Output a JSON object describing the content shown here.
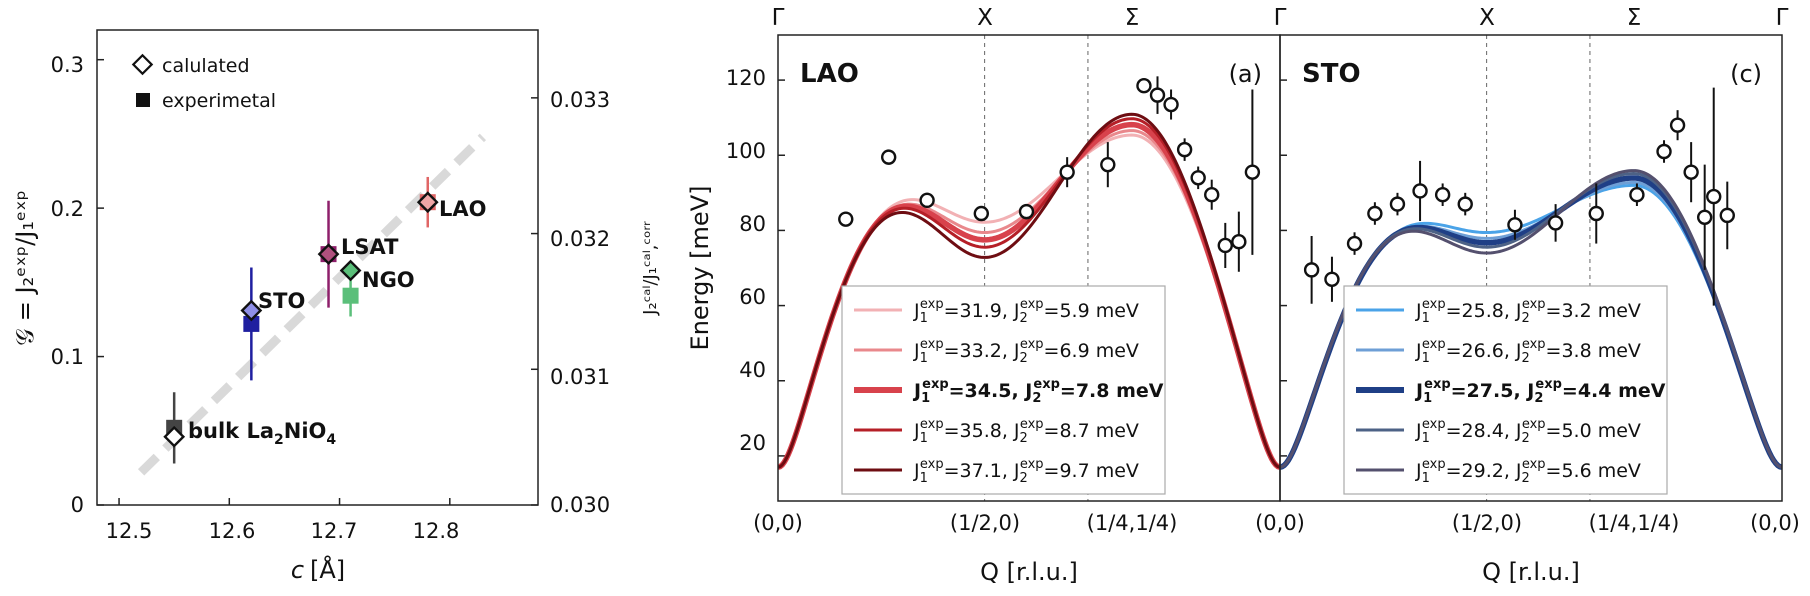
{
  "left_panel": {
    "xlabel_italic": "c",
    "xlabel_unit": "[Å]",
    "ylabel_main": "𝒢 = J₂ᵉˣᵖ/J₁ᵉˣᵖ",
    "ylabel_right": "J₂ᶜᵃˡ/J₁ᶜᵃˡ,ᶜᵒʳʳ",
    "legend": {
      "calc": "calulated",
      "exp": "experimetal"
    },
    "xticks": [
      "12.5",
      "12.6",
      "12.7",
      "12.8"
    ],
    "yticks": [
      "0",
      "0.1",
      "0.2",
      "0.3"
    ],
    "y2ticks": [
      "0.030",
      "0.031",
      "0.032",
      "0.033"
    ],
    "labels": {
      "LAO": "LAO",
      "LSAT": "LSAT",
      "NGO": "NGO",
      "STO": "STO",
      "bulk": "bulk La",
      "bulk_sub2": "2",
      "bulk_mid": "NiO",
      "bulk_sub4": "4"
    }
  },
  "dispersion": {
    "x_ticks": [
      "(0,0)",
      "(1/2,0)",
      "(1/4,1/4)",
      "(0,0)"
    ],
    "top_ticks": [
      "Γ",
      "X",
      "Σ",
      "Γ"
    ],
    "xlabel": "Q [r.l.u.]",
    "ylabel": "Energy [meV]",
    "yticks": [
      "20",
      "40",
      "60",
      "80",
      "100",
      "120"
    ],
    "a": {
      "title": "LAO",
      "tag": "(a)"
    },
    "c": {
      "title": "STO",
      "tag": "(c)"
    }
  },
  "chart_data": [
    {
      "type": "scatter",
      "title": "",
      "xlabel": "c [Å]",
      "ylabel": "𝒢 = J2exp/J1exp",
      "y2label": "J2cal/J1cal,corr",
      "xlim": [
        12.48,
        12.88
      ],
      "ylim": [
        0,
        0.32
      ],
      "y2lim": [
        0.03,
        0.0335
      ],
      "legend_position": "top-left",
      "series": [
        {
          "name": "calulated",
          "marker": "diamond-open",
          "points": [
            {
              "label": "bulk La2NiO4",
              "x": 12.55,
              "y": 0.046,
              "color": "#ffffff"
            },
            {
              "label": "STO",
              "x": 12.62,
              "y": 0.131,
              "color": "#8f8fe6"
            },
            {
              "label": "LSAT",
              "x": 12.69,
              "y": 0.169,
              "color": "#b0507e"
            },
            {
              "label": "NGO",
              "x": 12.71,
              "y": 0.158,
              "color": "#5bbf7a"
            },
            {
              "label": "LAO",
              "x": 12.78,
              "y": 0.204,
              "color": "#f0a6a6"
            }
          ]
        },
        {
          "name": "experimetal",
          "marker": "square",
          "points": [
            {
              "label": "bulk La2NiO4",
              "x": 12.55,
              "y": 0.052,
              "yerr": 0.024,
              "color": "#444444"
            },
            {
              "label": "STO",
              "x": 12.62,
              "y": 0.122,
              "yerr": 0.038,
              "color": "#1f1fa0"
            },
            {
              "label": "LSAT",
              "x": 12.69,
              "y": 0.169,
              "yerr": 0.036,
              "color": "#8e1f6b"
            },
            {
              "label": "NGO",
              "x": 12.71,
              "y": 0.141,
              "yerr": 0.014,
              "color": "#5bbf7a"
            },
            {
              "label": "LAO",
              "x": 12.78,
              "y": 0.204,
              "yerr": 0.017,
              "color": "#e06666"
            }
          ]
        }
      ],
      "trend_line": {
        "x": [
          12.52,
          12.83
        ],
        "y": [
          0.022,
          0.248
        ],
        "color": "#d9d9d9"
      }
    },
    {
      "type": "line",
      "panel": "(a)",
      "title": "LAO",
      "xlabel": "Q [r.l.u.]",
      "ylabel": "Energy [meV]",
      "ylim": [
        8,
        132
      ],
      "x_tick_labels": [
        "(0,0)",
        "(1/2,0)",
        "(1/4,1/4)",
        "(0,0)"
      ],
      "legend_position": "bottom-right",
      "series": [
        {
          "name": "J1exp=31.9, J2exp=5.9 meV",
          "J1": 31.9,
          "J2": 5.9,
          "color": "#f2b1b4",
          "bold": false
        },
        {
          "name": "J1exp=33.2, J2exp=6.9 meV",
          "J1": 33.2,
          "J2": 6.9,
          "color": "#e9888c",
          "bold": false
        },
        {
          "name": "J1exp=34.5, J2exp=7.8 meV",
          "J1": 34.5,
          "J2": 7.8,
          "color": "#d8424c",
          "bold": true
        },
        {
          "name": "J1exp=35.8, J2exp=8.7 meV",
          "J1": 35.8,
          "J2": 8.7,
          "color": "#b51f27",
          "bold": false
        },
        {
          "name": "J1exp=37.1, J2exp=9.7 meV",
          "J1": 37.1,
          "J2": 9.7,
          "color": "#6e0d12",
          "bold": false
        }
      ],
      "points": [
        {
          "x": 0.15,
          "y": 83,
          "yerr": 0
        },
        {
          "x": 0.245,
          "y": 99.5,
          "yerr": 2
        },
        {
          "x": 0.33,
          "y": 88,
          "yerr": 2
        },
        {
          "x": 0.45,
          "y": 84.5,
          "yerr": 2
        },
        {
          "x": 0.55,
          "y": 85,
          "yerr": 2
        },
        {
          "x": 0.64,
          "y": 95.5,
          "yerr": 4
        },
        {
          "x": 0.73,
          "y": 97.5,
          "yerr": 6
        },
        {
          "x": 0.81,
          "y": 118.5,
          "yerr": 0
        },
        {
          "x": 0.84,
          "y": 116,
          "yerr": 5
        },
        {
          "x": 0.87,
          "y": 113.5,
          "yerr": 4
        },
        {
          "x": 0.9,
          "y": 101.5,
          "yerr": 3
        },
        {
          "x": 0.93,
          "y": 94,
          "yerr": 3
        },
        {
          "x": 0.96,
          "y": 89.5,
          "yerr": 4
        },
        {
          "x": 0.99,
          "y": 76,
          "yerr": 6
        },
        {
          "x": 1.02,
          "y": 77,
          "yerr": 8
        },
        {
          "x": 1.05,
          "y": 95.5,
          "yerr": 22
        }
      ]
    },
    {
      "type": "line",
      "panel": "(c)",
      "title": "STO",
      "xlabel": "Q [r.l.u.]",
      "ylabel": "Energy [meV]",
      "ylim": [
        8,
        132
      ],
      "x_tick_labels": [
        "(0,0)",
        "(1/2,0)",
        "(1/4,1/4)",
        "(0,0)"
      ],
      "legend_position": "bottom-right",
      "series": [
        {
          "name": "J1exp=25.8, J2exp=3.2 meV",
          "J1": 25.8,
          "J2": 3.2,
          "color": "#4aa3e8",
          "bold": false
        },
        {
          "name": "J1exp=26.6, J2exp=3.8 meV",
          "J1": 26.6,
          "J2": 3.8,
          "color": "#6e9fd6",
          "bold": false
        },
        {
          "name": "J1exp=27.5, J2exp=4.4 meV",
          "J1": 27.5,
          "J2": 4.4,
          "color": "#1f3f86",
          "bold": true
        },
        {
          "name": "J1exp=28.4, J2exp=5.0 meV",
          "J1": 28.4,
          "J2": 5.0,
          "color": "#4d6286",
          "bold": false
        },
        {
          "name": "J1exp=29.2, J2exp=5.6 meV",
          "J1": 29.2,
          "J2": 5.6,
          "color": "#54506e",
          "bold": false
        }
      ],
      "points": [
        {
          "x": 0.07,
          "y": 69.5,
          "yerr": 9
        },
        {
          "x": 0.115,
          "y": 67,
          "yerr": 6
        },
        {
          "x": 0.165,
          "y": 76.5,
          "yerr": 3
        },
        {
          "x": 0.21,
          "y": 84.5,
          "yerr": 3
        },
        {
          "x": 0.26,
          "y": 87,
          "yerr": 3
        },
        {
          "x": 0.31,
          "y": 90.5,
          "yerr": 8
        },
        {
          "x": 0.36,
          "y": 89.5,
          "yerr": 3
        },
        {
          "x": 0.41,
          "y": 87,
          "yerr": 3
        },
        {
          "x": 0.52,
          "y": 81.5,
          "yerr": 4
        },
        {
          "x": 0.61,
          "y": 82,
          "yerr": 5
        },
        {
          "x": 0.7,
          "y": 84.5,
          "yerr": 8
        },
        {
          "x": 0.79,
          "y": 89.5,
          "yerr": 3
        },
        {
          "x": 0.85,
          "y": 101,
          "yerr": 3
        },
        {
          "x": 0.88,
          "y": 108,
          "yerr": 4
        },
        {
          "x": 0.91,
          "y": 95.5,
          "yerr": 8
        },
        {
          "x": 0.94,
          "y": 83.5,
          "yerr": 14
        },
        {
          "x": 0.96,
          "y": 89,
          "yerr": 29
        },
        {
          "x": 0.99,
          "y": 84,
          "yerr": 9
        }
      ]
    }
  ]
}
